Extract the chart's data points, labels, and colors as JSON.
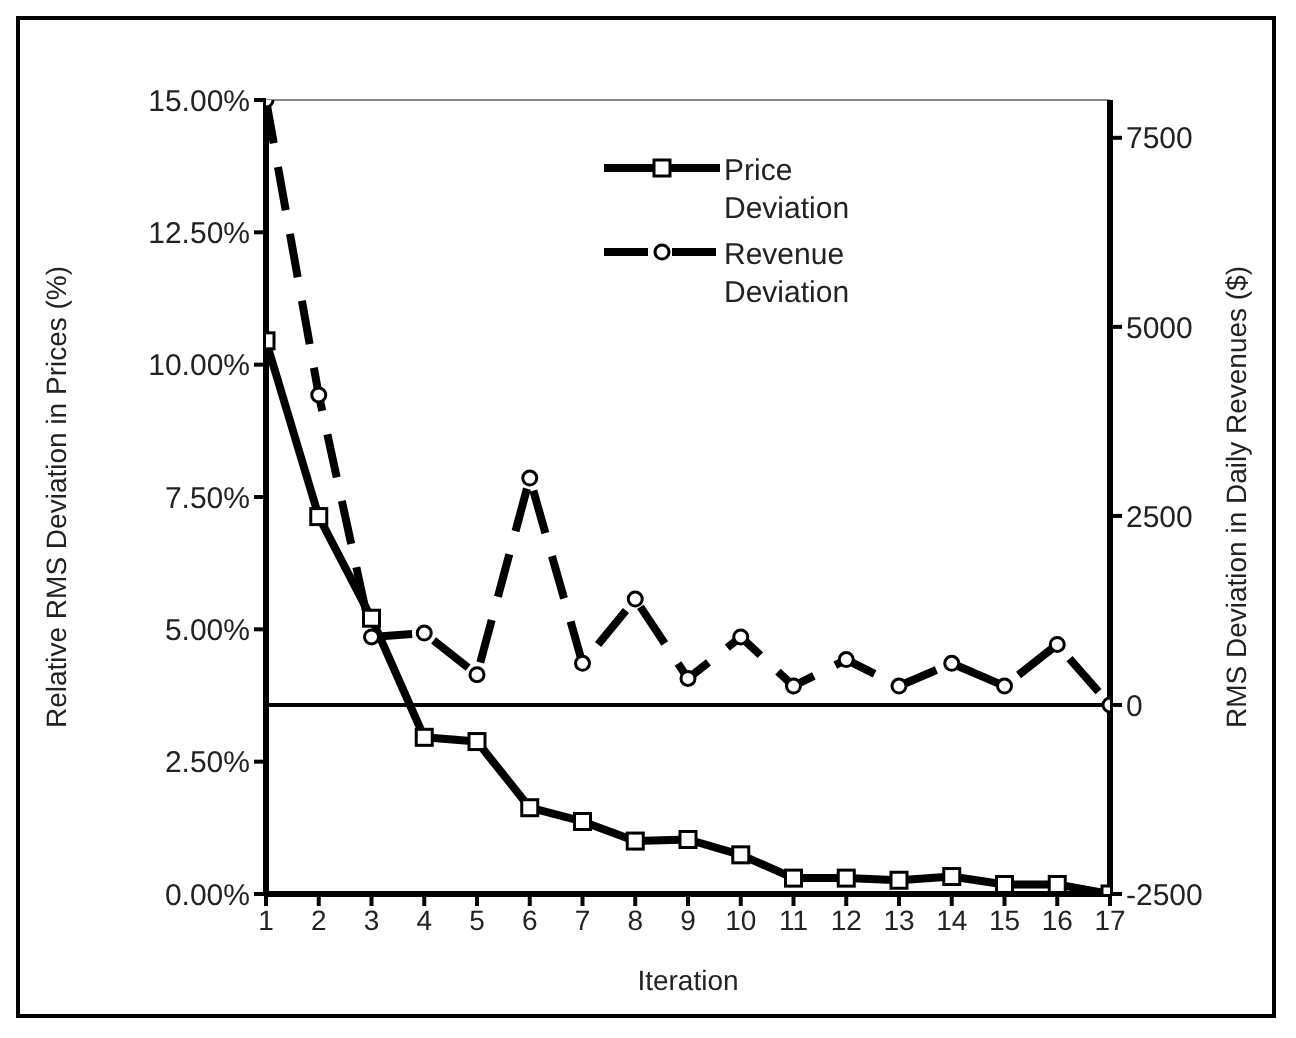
{
  "chart_data": {
    "type": "line",
    "xlabel": "Iteration",
    "ylabel": "Relative RMS Deviation in Prices (%)",
    "y2label": "RMS Deviation in Daily Revenues ($)",
    "x": [
      1,
      2,
      3,
      4,
      5,
      6,
      7,
      8,
      9,
      10,
      11,
      12,
      13,
      14,
      15,
      16,
      17
    ],
    "xlim": [
      1,
      17
    ],
    "xticks": [
      1,
      2,
      3,
      4,
      5,
      6,
      7,
      8,
      9,
      10,
      11,
      12,
      13,
      14,
      15,
      16,
      17
    ],
    "ylim": [
      0,
      15
    ],
    "yticks": [
      {
        "value": 0,
        "label": "0.00%"
      },
      {
        "value": 2.5,
        "label": "2.50%"
      },
      {
        "value": 5,
        "label": "5.00%"
      },
      {
        "value": 7.5,
        "label": "7.50%"
      },
      {
        "value": 10,
        "label": "10.00%"
      },
      {
        "value": 12.5,
        "label": "12.50%"
      },
      {
        "value": 15,
        "label": "15.00%"
      }
    ],
    "y2lim": [
      -2500,
      8000
    ],
    "y2ticks": [
      -2500,
      0,
      2500,
      5000,
      7500
    ],
    "series": [
      {
        "name": "Price Deviation",
        "color": "#000000",
        "marker": "square",
        "line_style": "solid",
        "values": [
          10.45,
          7.13,
          5.21,
          2.96,
          2.88,
          1.63,
          1.37,
          1.0,
          1.03,
          0.74,
          0.3,
          0.3,
          0.26,
          0.33,
          0.18,
          0.18,
          0
        ]
      },
      {
        "name": "Revenue Deviation",
        "color": "#000000",
        "marker": "circle",
        "line_style": "dashed",
        "axis": "y2",
        "values": [
          8000,
          4100,
          900,
          950,
          400,
          3000,
          550,
          1400,
          350,
          900,
          250,
          600,
          250,
          550,
          250,
          800,
          0
        ]
      }
    ],
    "ref_lines": [
      {
        "axis": "y2",
        "value": 0,
        "color": "#000000"
      }
    ],
    "legend": "top right"
  }
}
